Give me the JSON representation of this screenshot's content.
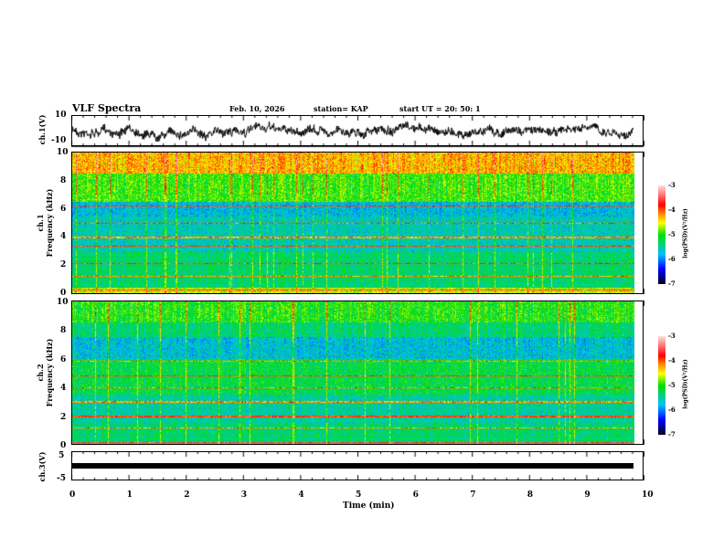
{
  "header": {
    "title": "VLF Spectra",
    "date": "Feb. 10, 2026",
    "station": "station= KAP",
    "start": "start  UT =   20: 50: 1"
  },
  "chart_data": [
    {
      "type": "line",
      "name": "ch1",
      "ylabel": "ch.1(V)",
      "ylim": [
        -10,
        10
      ],
      "yticks": [
        "10",
        "-10"
      ],
      "xlim": [
        0,
        10
      ]
    },
    {
      "type": "heatmap",
      "name": "ch1-spectrogram",
      "ylabel": "ch.1\nFrequency (kHz)",
      "ylabel_top": "ch.1",
      "ylabel_bottom": "Frequency (kHz)",
      "ylim": [
        0,
        10
      ],
      "yticks": [
        "10",
        "8",
        "6",
        "4",
        "2",
        "0"
      ],
      "xlim": [
        0,
        10
      ],
      "data_end_min": 9.83
    },
    {
      "type": "heatmap",
      "name": "ch2-spectrogram",
      "ylabel_top": "ch.2",
      "ylabel_bottom": "Frequency (kHz)",
      "ylim": [
        0,
        10
      ],
      "yticks": [
        "10",
        "8",
        "6",
        "4",
        "2",
        "0"
      ],
      "xlim": [
        0,
        10
      ],
      "data_end_min": 9.83
    },
    {
      "type": "line",
      "name": "ch3",
      "ylabel": "ch.3(V)",
      "ylim": [
        -5,
        5
      ],
      "yticks": [
        "5",
        "-5"
      ],
      "constant_value": 0
    }
  ],
  "xaxis": {
    "label": "Time (min)",
    "ticks": [
      "0",
      "1",
      "2",
      "3",
      "4",
      "5",
      "6",
      "7",
      "8",
      "9",
      "10"
    ]
  },
  "colorbar": {
    "label": "log(PSD)(V²/Hz)",
    "ticks": [
      "-3",
      "-4",
      "-5",
      "-6",
      "-7"
    ],
    "range": [
      -7,
      -3
    ]
  }
}
